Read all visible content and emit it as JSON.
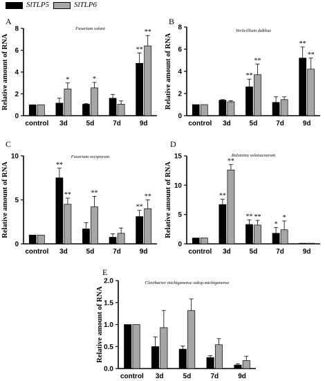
{
  "legend": {
    "items": [
      {
        "label": "SlTLP5",
        "color": "#000000"
      },
      {
        "label": "SlTLP6",
        "color": "#a6a6a6"
      }
    ]
  },
  "chart_data": [
    {
      "panel": "A",
      "type": "bar",
      "title": "Fusarium solani",
      "ylabel": "Relative amount of RNA",
      "categories": [
        "control",
        "3d",
        "5d",
        "7d",
        "9d"
      ],
      "ylim": [
        0,
        8
      ],
      "yticks": [
        0,
        2,
        4,
        6,
        8
      ],
      "series": [
        {
          "name": "SlTLP5",
          "values": [
            1.0,
            1.15,
            1.05,
            1.6,
            4.8
          ],
          "errors": [
            0,
            0.45,
            0.05,
            0.35,
            0.95
          ],
          "marks": [
            "",
            "",
            "",
            "",
            "**"
          ]
        },
        {
          "name": "SlTLP6",
          "values": [
            1.0,
            2.45,
            2.55,
            1.05,
            6.4
          ],
          "errors": [
            0,
            0.55,
            0.5,
            0.3,
            0.95
          ],
          "marks": [
            "",
            "*",
            "*",
            "",
            "**"
          ]
        }
      ]
    },
    {
      "panel": "B",
      "type": "bar",
      "title": "Verticillium dahliae",
      "ylabel": "Relative amount of RNA",
      "categories": [
        "control",
        "3d",
        "5d",
        "7d",
        "9d"
      ],
      "ylim": [
        0,
        8
      ],
      "yticks": [
        0,
        2,
        4,
        6,
        8
      ],
      "series": [
        {
          "name": "SlTLP5",
          "values": [
            1.0,
            1.4,
            2.6,
            1.2,
            5.2
          ],
          "errors": [
            0,
            0.05,
            0.7,
            0.5,
            1.0
          ],
          "marks": [
            "",
            "",
            "**",
            "",
            "**"
          ]
        },
        {
          "name": "SlTLP6",
          "values": [
            1.0,
            1.25,
            3.7,
            1.45,
            4.2
          ],
          "errors": [
            0,
            0.1,
            0.95,
            0.25,
            1.0
          ],
          "marks": [
            "",
            "",
            "**",
            "",
            "**"
          ]
        }
      ]
    },
    {
      "panel": "C",
      "type": "bar",
      "title": "Fusarium oxysporum",
      "ylabel": "Relative amount of RNA",
      "categories": [
        "control",
        "3d",
        "5d",
        "7d",
        "9d"
      ],
      "ylim": [
        0,
        10
      ],
      "yticks": [
        0,
        5,
        10
      ],
      "series": [
        {
          "name": "SlTLP5",
          "values": [
            1.0,
            7.5,
            1.7,
            0.75,
            3.1
          ],
          "errors": [
            0,
            1.1,
            0.7,
            0.4,
            0.7
          ],
          "marks": [
            "",
            "**",
            "",
            "",
            "**"
          ]
        },
        {
          "name": "SlTLP6",
          "values": [
            1.0,
            4.5,
            4.2,
            1.2,
            4.0
          ],
          "errors": [
            0,
            0.7,
            1.2,
            0.6,
            1.0
          ],
          "marks": [
            "",
            "**",
            "**",
            "",
            "**"
          ]
        }
      ]
    },
    {
      "panel": "D",
      "type": "bar",
      "title": "Ralstonia solanacearum",
      "ylabel": "Relative amount of RNA",
      "categories": [
        "control",
        "3d",
        "5d",
        "7d",
        "9d"
      ],
      "ylim": [
        0,
        15
      ],
      "yticks": [
        0,
        5,
        10,
        15
      ],
      "series": [
        {
          "name": "SlTLP5",
          "values": [
            1.0,
            6.7,
            3.3,
            1.8,
            0.1
          ],
          "errors": [
            0,
            0.9,
            0.8,
            1.0,
            0
          ],
          "marks": [
            "",
            "**",
            "**",
            "*",
            ""
          ]
        },
        {
          "name": "SlTLP6",
          "values": [
            1.0,
            12.6,
            3.2,
            2.4,
            0.1
          ],
          "errors": [
            0,
            0.9,
            0.8,
            1.5,
            0
          ],
          "marks": [
            "",
            "**",
            "**",
            "*",
            ""
          ]
        }
      ]
    },
    {
      "panel": "E",
      "type": "bar",
      "title": "Clavibacter michiganense subsp.michiganense",
      "ylabel": "Relative amount of RNA",
      "categories": [
        "control",
        "3d",
        "5d",
        "7d",
        "9d"
      ],
      "ylim": [
        0,
        2.0
      ],
      "yticks": [
        0.0,
        0.5,
        1.0,
        1.5,
        2.0
      ],
      "series": [
        {
          "name": "SlTLP5",
          "values": [
            1.0,
            0.5,
            0.44,
            0.25,
            0.08
          ],
          "errors": [
            0,
            0.22,
            0.07,
            0.04,
            0.03
          ],
          "marks": [
            "",
            "",
            "",
            "",
            ""
          ]
        },
        {
          "name": "SlTLP6",
          "values": [
            1.0,
            0.93,
            1.32,
            0.54,
            0.18
          ],
          "errors": [
            0,
            0.39,
            0.26,
            0.14,
            0.1
          ],
          "marks": [
            "",
            "",
            "",
            "",
            ""
          ]
        }
      ]
    }
  ]
}
